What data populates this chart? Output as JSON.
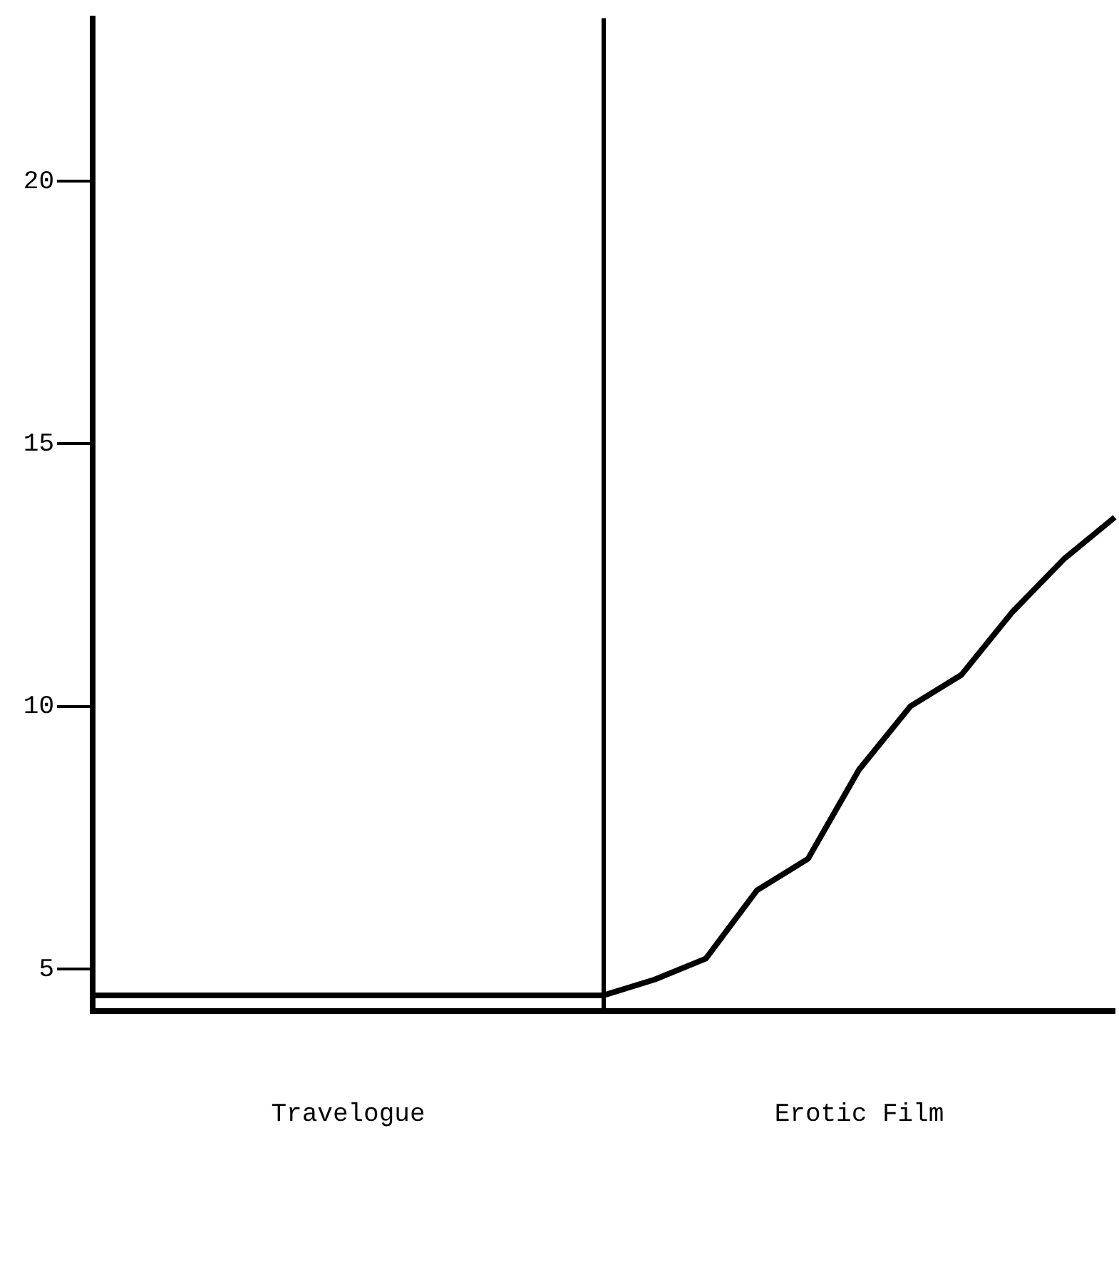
{
  "chart_data": {
    "type": "line",
    "categories": [
      null,
      null,
      null,
      null,
      null,
      null,
      null,
      null,
      null,
      null,
      null,
      null,
      null,
      null,
      null,
      null,
      null,
      null,
      null,
      null,
      null
    ],
    "values": [
      4.5,
      4.5,
      4.5,
      4.5,
      4.5,
      4.5,
      4.5,
      4.5,
      4.5,
      4.5,
      4.5,
      4.8,
      5.2,
      6.5,
      7.1,
      8.8,
      10.0,
      10.6,
      11.8,
      12.8,
      13.6
    ],
    "color": "#000000",
    "marker": "none",
    "line_style": "solid",
    "grid": false,
    "legend": false,
    "tick_labels": "y",
    "ylim": [
      4.2,
      23.1
    ],
    "yticks": [
      5,
      10,
      15,
      20
    ],
    "annotations": [
      "Travelogue",
      "Erotic Film"
    ]
  }
}
